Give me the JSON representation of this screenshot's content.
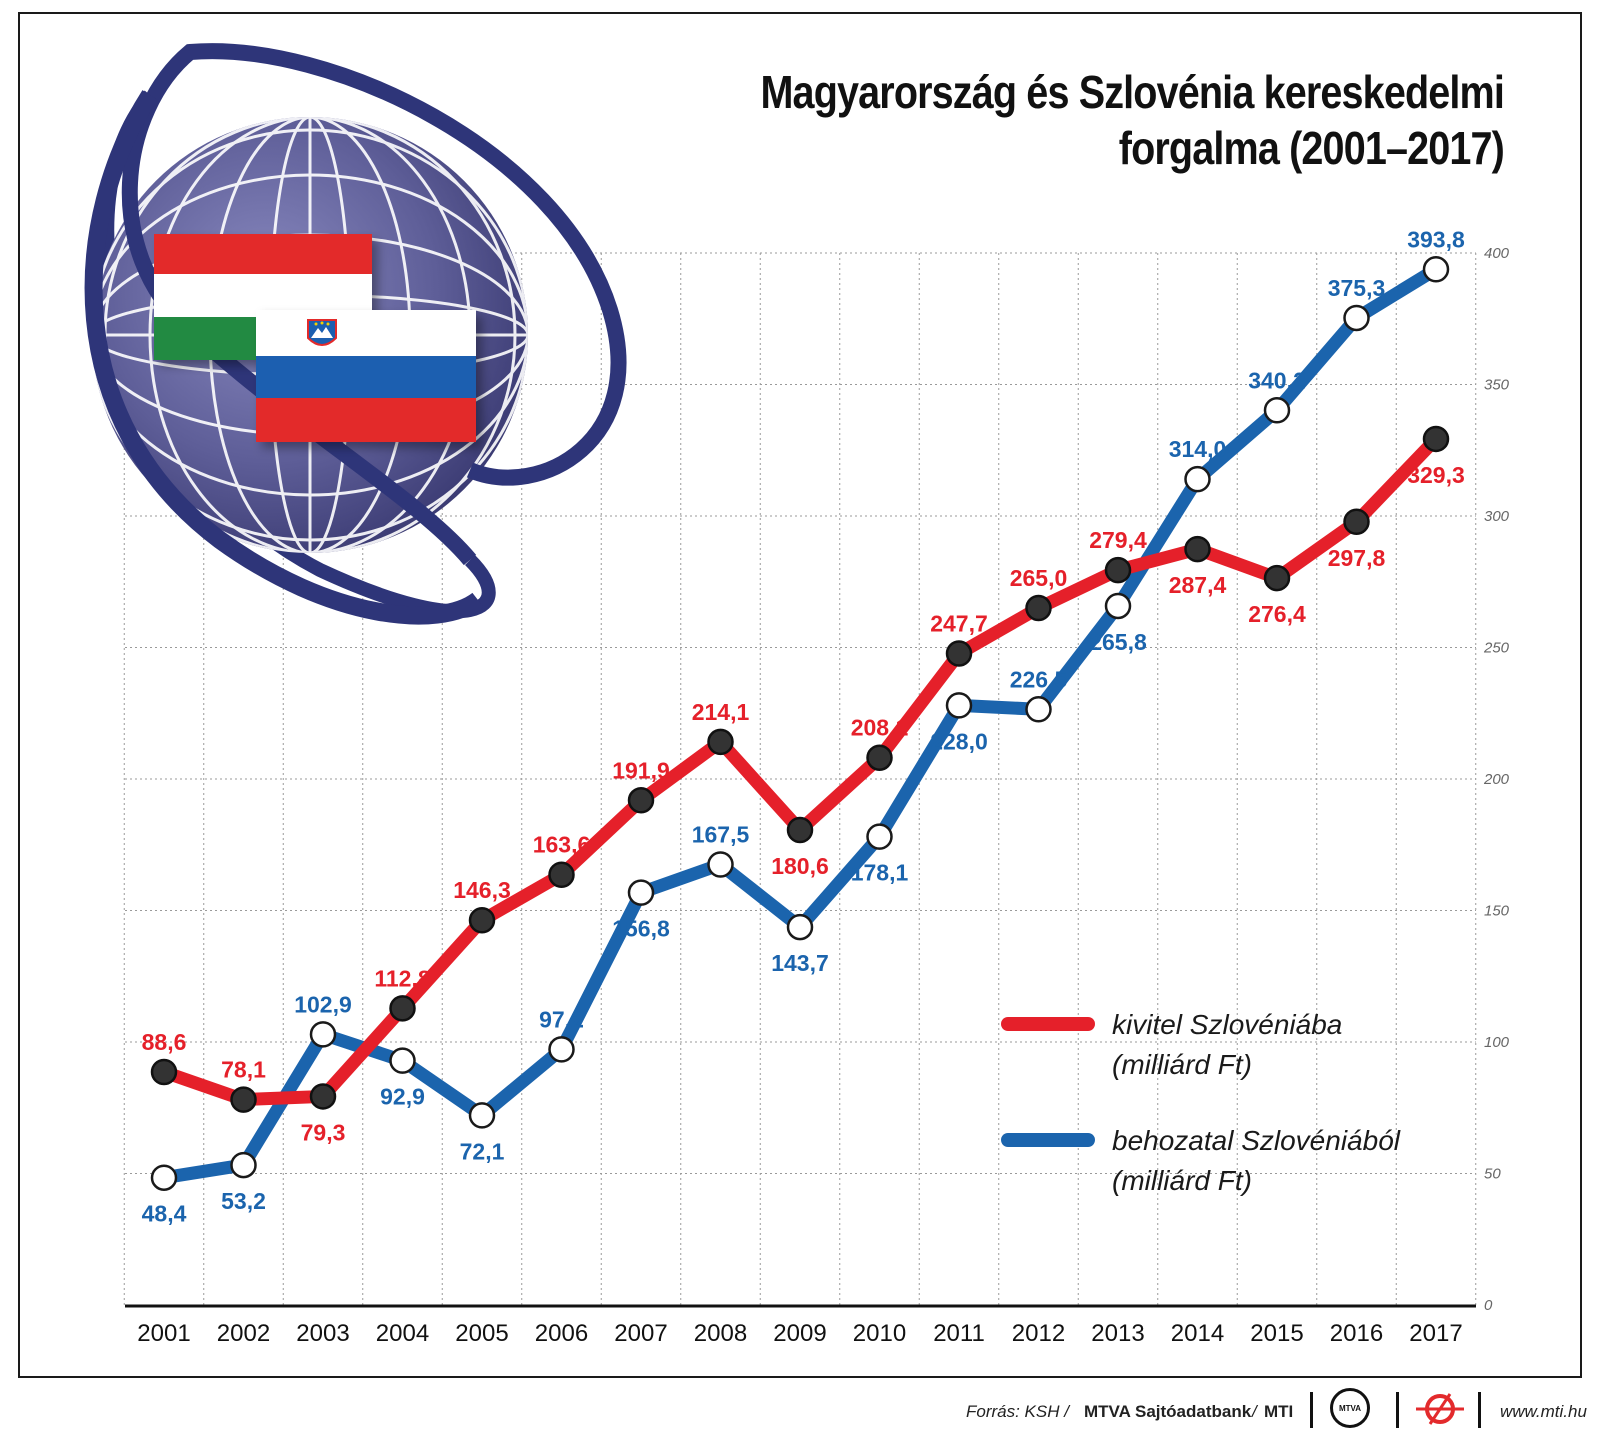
{
  "chart_data": {
    "type": "line",
    "title": "Magyarország és Szlovénia kereskedelmi forgalma (2001–2017)",
    "x": [
      "2001",
      "2002",
      "2003",
      "2004",
      "2005",
      "2006",
      "2007",
      "2008",
      "2009",
      "2010",
      "2011",
      "2012",
      "2013",
      "2014",
      "2015",
      "2016",
      "2017"
    ],
    "ylim": [
      0,
      400
    ],
    "yticks": [
      "0",
      "50",
      "100",
      "150",
      "200",
      "250",
      "300",
      "350",
      "400"
    ],
    "grid": true,
    "legend_position": "bottom-right",
    "series": [
      {
        "name": "kivitel Szlovéniába (milliárd Ft)",
        "color": "#e5202a",
        "values": [
          88.6,
          78.1,
          79.3,
          112.8,
          146.3,
          163.6,
          191.9,
          214.1,
          180.6,
          208.1,
          247.7,
          265.0,
          279.4,
          287.4,
          276.4,
          297.8,
          329.3
        ],
        "labels": [
          "88,6",
          "78,1",
          "79,3",
          "112,8",
          "146,3",
          "163,6",
          "191,9",
          "214,1",
          "180,6",
          "208,1",
          "247,7",
          "265,0",
          "279,4",
          "287,4",
          "276,4",
          "297,8",
          "329,3"
        ]
      },
      {
        "name": "behozatal Szlovéniából (milliárd Ft)",
        "color": "#1b64ad",
        "values": [
          48.4,
          53.2,
          102.9,
          92.9,
          72.1,
          97.2,
          156.8,
          167.5,
          143.7,
          178.1,
          228.0,
          226.5,
          265.8,
          314.0,
          340.2,
          375.3,
          393.8
        ],
        "labels": [
          "48,4",
          "53,2",
          "102,9",
          "92,9",
          "72,1",
          "97,2",
          "156,8",
          "167,5",
          "143,7",
          "178,1",
          "228,0",
          "226,5",
          "265,8",
          "314,0",
          "340,2",
          "375,3",
          "393,8"
        ]
      }
    ]
  },
  "title_line1": "Magyarország és Szlovénia kereskedelmi",
  "title_line2": "forgalma (2001–2017)",
  "legend": {
    "export_line1": "kivitel Szlovéniába",
    "export_line2": "(milliárd Ft)",
    "import_line1": "behozatal Szlovéniából",
    "import_line2": "(milliárd Ft)"
  },
  "footer": {
    "source_prefix": "Forrás: KSH /",
    "source_bold": "MTVA Sajtóadatbank",
    "source_sep": "/",
    "source_mti": "MTI",
    "logo_text": "MTVA",
    "url": "www.mti.hu"
  },
  "colors": {
    "navy": "#2e3579",
    "globe": "#6d6da3",
    "hu_red": "#e32a2c",
    "hu_green": "#238a43",
    "si_blue": "#1d5fb0",
    "si_red": "#e32a2c"
  }
}
